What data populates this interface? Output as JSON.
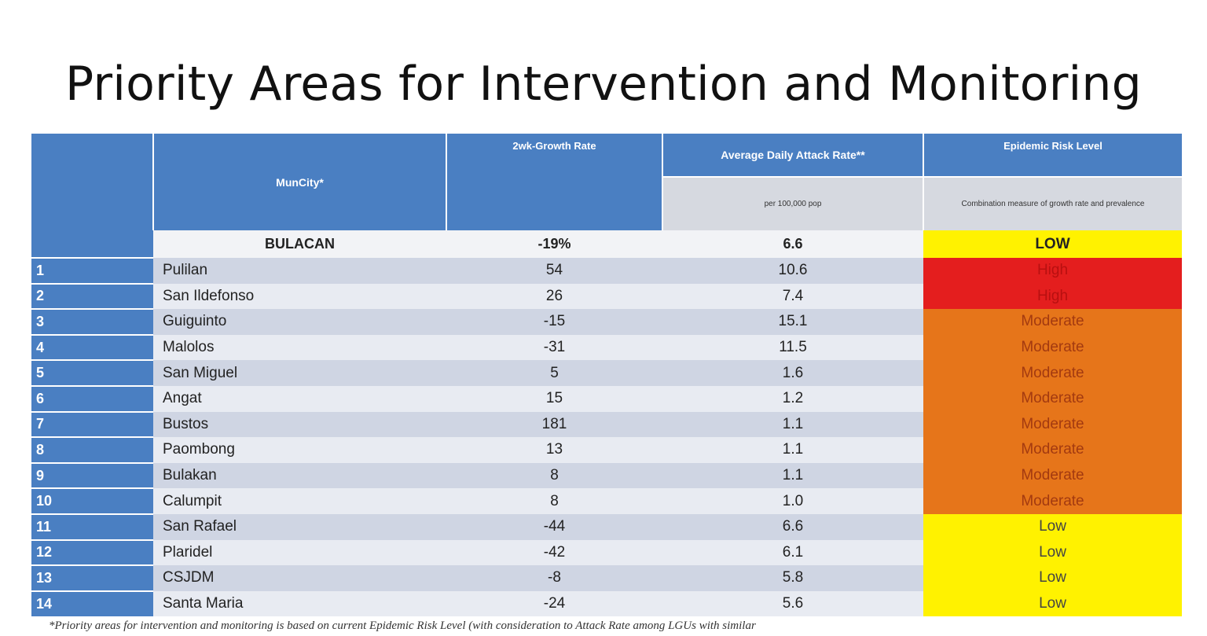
{
  "title": "Priority Areas for Intervention and Monitoring",
  "table": {
    "headers": {
      "muncity": "MunCity*",
      "growth": "2wk-Growth Rate",
      "attack": "Average Daily Attack Rate**",
      "attack_sub": "per 100,000 pop",
      "risk": "Epidemic Risk Level",
      "risk_sub": "Combination measure of growth rate and prevalence"
    },
    "province": {
      "name": "BULACAN",
      "growth": "-19%",
      "attack": "6.6",
      "risk": "LOW"
    },
    "rows": [
      {
        "num": "1",
        "name": "Pulilan",
        "growth": "54",
        "attack": "10.6",
        "risk": "High"
      },
      {
        "num": "2",
        "name": "San Ildefonso",
        "growth": "26",
        "attack": "7.4",
        "risk": "High"
      },
      {
        "num": "3",
        "name": "Guiguinto",
        "growth": "-15",
        "attack": "15.1",
        "risk": "Moderate"
      },
      {
        "num": "4",
        "name": "Malolos",
        "growth": "-31",
        "attack": "11.5",
        "risk": "Moderate"
      },
      {
        "num": "5",
        "name": "San Miguel",
        "growth": "5",
        "attack": "1.6",
        "risk": "Moderate"
      },
      {
        "num": "6",
        "name": "Angat",
        "growth": "15",
        "attack": "1.2",
        "risk": "Moderate"
      },
      {
        "num": "7",
        "name": "Bustos",
        "growth": "181",
        "attack": "1.1",
        "risk": "Moderate"
      },
      {
        "num": "8",
        "name": "Paombong",
        "growth": "13",
        "attack": "1.1",
        "risk": "Moderate"
      },
      {
        "num": "9",
        "name": "Bulakan",
        "growth": "8",
        "attack": "1.1",
        "risk": "Moderate"
      },
      {
        "num": "10",
        "name": "Calumpit",
        "growth": "8",
        "attack": "1.0",
        "risk": "Moderate"
      },
      {
        "num": "11",
        "name": "San Rafael",
        "growth": "-44",
        "attack": "6.6",
        "risk": "Low"
      },
      {
        "num": "12",
        "name": "Plaridel",
        "growth": "-42",
        "attack": "6.1",
        "risk": "Low"
      },
      {
        "num": "13",
        "name": "CSJDM",
        "growth": "-8",
        "attack": "5.8",
        "risk": "Low"
      },
      {
        "num": "14",
        "name": "Santa Maria",
        "growth": "-24",
        "attack": "5.6",
        "risk": "Low"
      }
    ]
  },
  "footnote": "*Priority areas for intervention and monitoring is based on current Epidemic Risk Level (with consideration to Attack Rate among LGUs with similar",
  "colors": {
    "header_blue": "#4a7fc2",
    "risk_high": "#e41e1e",
    "risk_moderate": "#e6751a",
    "risk_low": "#fff200"
  }
}
